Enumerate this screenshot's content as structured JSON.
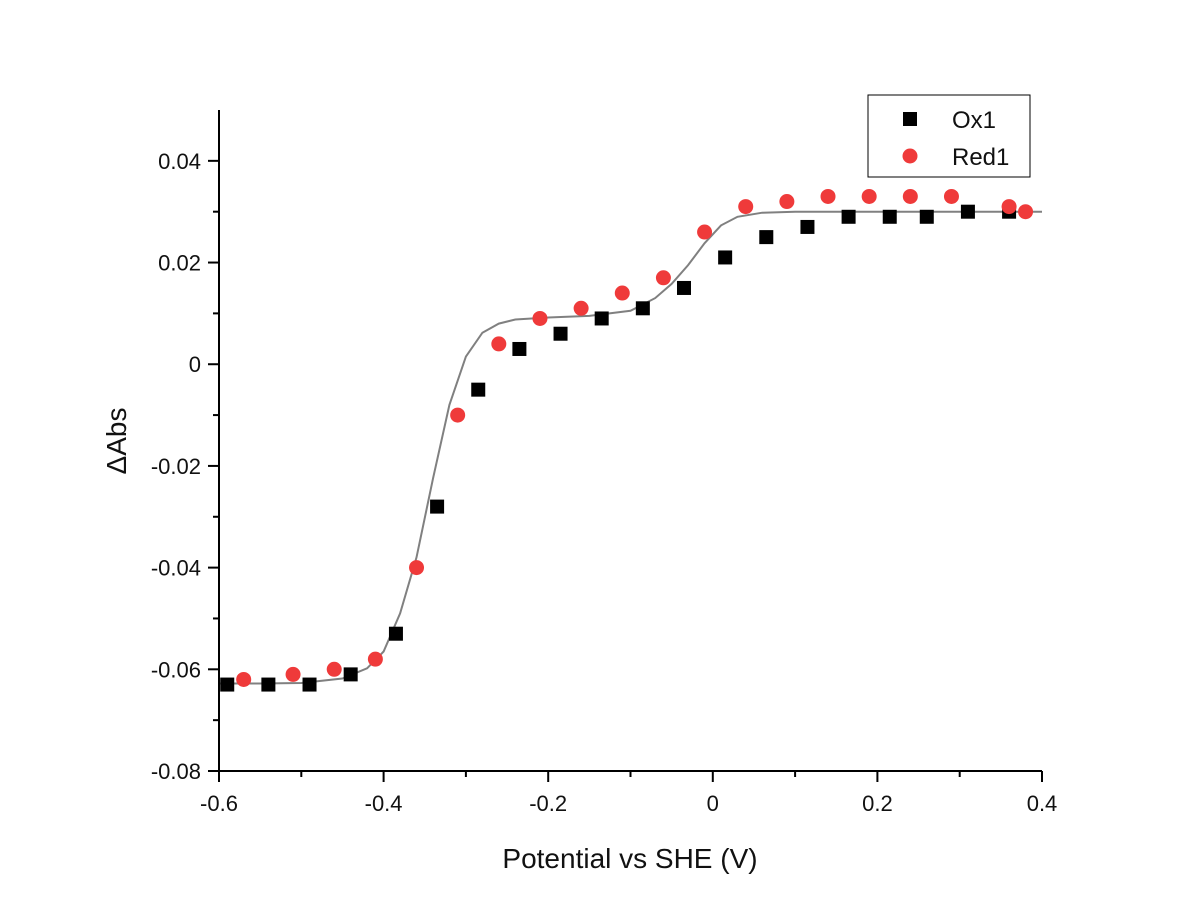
{
  "chart_data": {
    "type": "scatter",
    "title": "",
    "xlabel": "Potential vs SHE (V)",
    "ylabel": "ΔAbs",
    "xlim": [
      -0.6,
      0.4
    ],
    "ylim": [
      -0.08,
      0.05
    ],
    "x_ticks": [
      -0.6,
      -0.4,
      -0.2,
      0,
      0.2,
      0.4
    ],
    "x_tick_labels": [
      "-0.6",
      "-0.4",
      "-0.2",
      "0",
      "0.2",
      "0.4"
    ],
    "y_ticks": [
      -0.08,
      -0.06,
      -0.04,
      -0.02,
      0,
      0.02,
      0.04
    ],
    "y_tick_labels": [
      "-0.08",
      "-0.06",
      "-0.04",
      "-0.02",
      "0",
      "0.02",
      "0.04"
    ],
    "grid": false,
    "legend_position": "top-right",
    "series": [
      {
        "name": "Ox1",
        "marker": "square",
        "color": "#000000",
        "x": [
          -0.59,
          -0.54,
          -0.49,
          -0.44,
          -0.385,
          -0.335,
          -0.285,
          -0.235,
          -0.185,
          -0.135,
          -0.085,
          -0.035,
          0.015,
          0.065,
          0.115,
          0.165,
          0.215,
          0.26,
          0.31,
          0.36
        ],
        "y": [
          -0.063,
          -0.063,
          -0.063,
          -0.061,
          -0.053,
          -0.028,
          -0.005,
          0.003,
          0.006,
          0.009,
          0.011,
          0.015,
          0.021,
          0.025,
          0.027,
          0.029,
          0.029,
          0.029,
          0.03,
          0.03
        ]
      },
      {
        "name": "Red1",
        "marker": "circle",
        "color": "#ef3a3a",
        "x": [
          -0.57,
          -0.51,
          -0.46,
          -0.41,
          -0.36,
          -0.31,
          -0.26,
          -0.21,
          -0.16,
          -0.11,
          -0.06,
          -0.01,
          0.04,
          0.09,
          0.14,
          0.19,
          0.24,
          0.29,
          0.36,
          0.38
        ],
        "y": [
          -0.062,
          -0.061,
          -0.06,
          -0.058,
          -0.04,
          -0.01,
          0.004,
          0.009,
          0.011,
          0.014,
          0.017,
          0.026,
          0.031,
          0.032,
          0.033,
          0.033,
          0.033,
          0.033,
          0.031,
          0.03
        ]
      },
      {
        "type": "line",
        "color": "#808080",
        "x": [
          -0.6,
          -0.55,
          -0.5,
          -0.45,
          -0.42,
          -0.4,
          -0.38,
          -0.36,
          -0.34,
          -0.32,
          -0.3,
          -0.28,
          -0.26,
          -0.24,
          -0.2,
          -0.15,
          -0.1,
          -0.07,
          -0.05,
          -0.03,
          -0.01,
          0.01,
          0.03,
          0.06,
          0.1,
          0.15,
          0.2,
          0.3,
          0.4
        ],
        "y": [
          -0.0628,
          -0.0628,
          -0.0627,
          -0.0618,
          -0.0598,
          -0.0565,
          -0.049,
          -0.038,
          -0.0225,
          -0.008,
          0.0015,
          0.0062,
          0.008,
          0.0088,
          0.0092,
          0.0095,
          0.0105,
          0.013,
          0.0158,
          0.0195,
          0.0238,
          0.0273,
          0.029,
          0.0298,
          0.03,
          0.03,
          0.03,
          0.03,
          0.03
        ]
      }
    ]
  }
}
